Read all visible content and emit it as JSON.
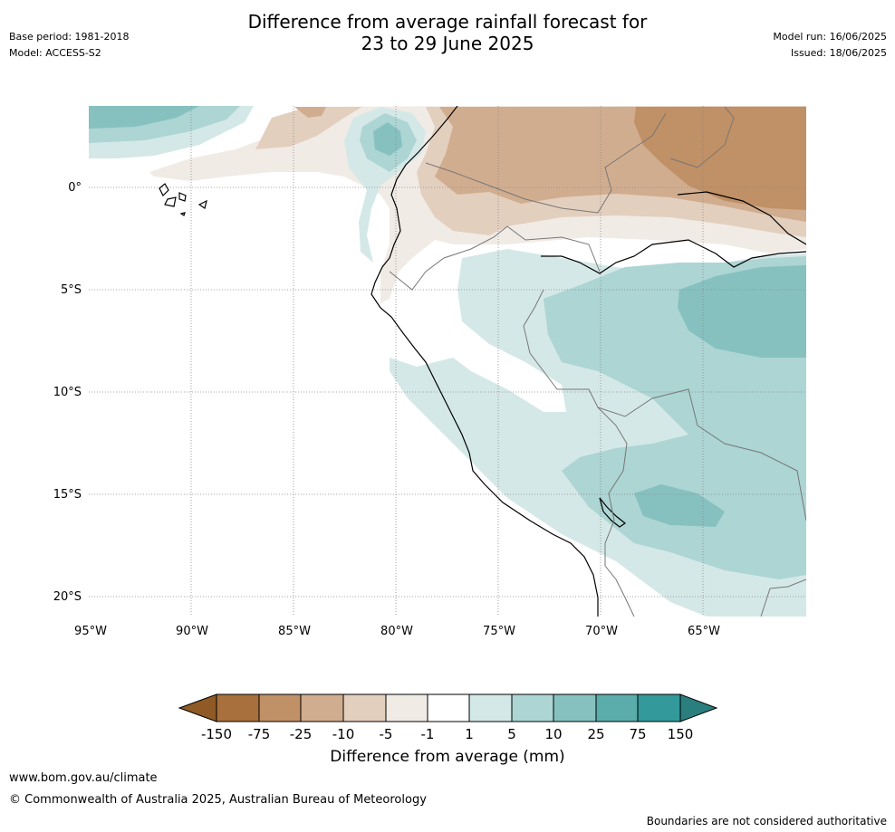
{
  "title_line1": "Difference from average rainfall forecast for",
  "title_line2": "23 to 29 June 2025",
  "meta_left": {
    "base_period": "Base period: 1981-2018",
    "model": "Model: ACCESS-S2"
  },
  "meta_right": {
    "model_run": "Model run: 16/06/2025",
    "issued": "Issued: 18/06/2025"
  },
  "axes": {
    "lat_labels": [
      "0°",
      "5°S",
      "10°S",
      "15°S",
      "20°S"
    ],
    "lon_labels": [
      "95°W",
      "90°W",
      "85°W",
      "80°W",
      "75°W",
      "70°W",
      "65°W"
    ]
  },
  "colorbar": {
    "ticks": [
      "-150",
      "-75",
      "-25",
      "-10",
      "-5",
      "-1",
      "1",
      "5",
      "10",
      "25",
      "75",
      "150"
    ],
    "colors": [
      "#8f5a26",
      "#a8703c",
      "#c09066",
      "#d1ad8f",
      "#e3cfbe",
      "#f1ebe5",
      "#ffffff",
      "#d4e8e7",
      "#acd5d4",
      "#86c1c0",
      "#5aadab",
      "#33999a",
      "#2a7e7d"
    ],
    "title": "Difference from average (mm)"
  },
  "footer": {
    "url": "www.bom.gov.au/climate",
    "copyright": "© Commonwealth of Australia 2025, Australian Bureau of Meteorology",
    "note": "Boundaries are not considered authoritative"
  }
}
